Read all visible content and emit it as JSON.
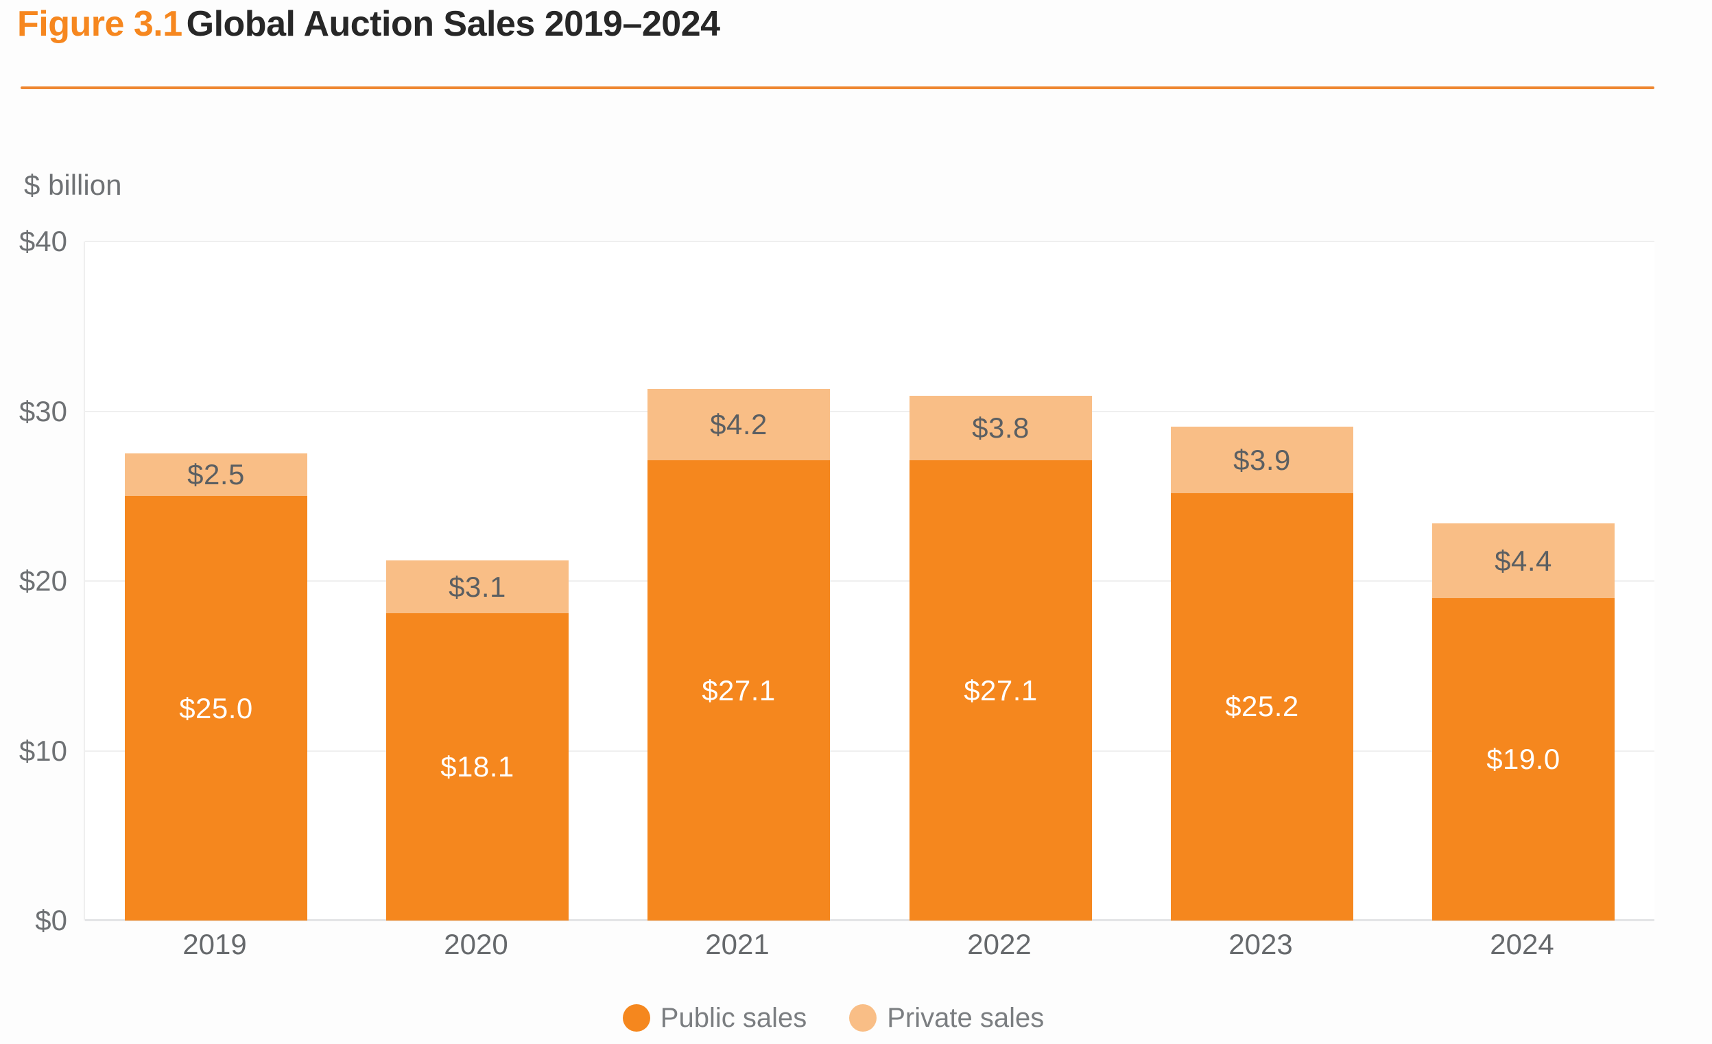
{
  "header": {
    "figure_label": "Figure 3.1",
    "title": "Global Auction Sales 2019–2024"
  },
  "colors": {
    "accent_orange": "#F6871F",
    "rule_orange": "#EE8731",
    "public_orange": "#F5871E",
    "private_orange": "#F9BE86"
  },
  "chart_data": {
    "type": "bar",
    "stacked": true,
    "title": "Global Auction Sales 2019–2024",
    "unit_label": "$ billion",
    "categories": [
      "2019",
      "2020",
      "2021",
      "2022",
      "2023",
      "2024"
    ],
    "series": [
      {
        "name": "Public sales",
        "values": [
          25.0,
          18.1,
          27.1,
          27.1,
          25.2,
          19.0
        ],
        "labels": [
          "$25.0",
          "$18.1",
          "$27.1",
          "$27.1",
          "$25.2",
          "$19.0"
        ],
        "color": "#F5871E",
        "label_color": "#FFFFFF"
      },
      {
        "name": "Private sales",
        "values": [
          2.5,
          3.1,
          4.2,
          3.8,
          3.9,
          4.4
        ],
        "labels": [
          "$2.5",
          "$3.1",
          "$4.2",
          "$3.8",
          "$3.9",
          "$4.4"
        ],
        "color": "#F9BE86",
        "label_color": "#5B5F62"
      }
    ],
    "totals": [
      27.5,
      21.2,
      31.3,
      30.9,
      29.1,
      23.4
    ],
    "ylim": [
      0,
      40
    ],
    "yticks": [
      0,
      10,
      20,
      30,
      40
    ],
    "ytick_labels": [
      "$0",
      "$10",
      "$20",
      "$30",
      "$40"
    ],
    "grid": true,
    "legend_position": "bottom"
  }
}
